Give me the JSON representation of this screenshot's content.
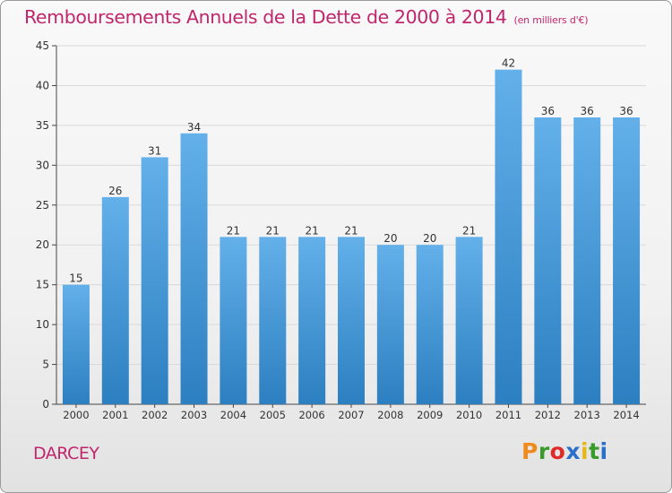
{
  "header": {
    "title": "Remboursements Annuels de la Dette de 2000 à 2014",
    "unit": "(en milliers d'€)"
  },
  "footer": {
    "city": "DARCEY",
    "brand": "Proxiti",
    "brand_colors": [
      "#f08a1c",
      "#3a9a2a",
      "#e02a2a",
      "#2a6fc9",
      "#e5b81a",
      "#3a9a2a",
      "#2a6fc9"
    ]
  },
  "colors": {
    "bar_top": "#63b0ea",
    "bar_bottom": "#2c7fc0",
    "title": "#c0266c",
    "axis": "#444444",
    "grid": "#d9d9d9"
  },
  "chart_data": {
    "type": "bar",
    "categories": [
      "2000",
      "2001",
      "2002",
      "2003",
      "2004",
      "2005",
      "2006",
      "2007",
      "2008",
      "2009",
      "2010",
      "2011",
      "2012",
      "2013",
      "2014"
    ],
    "values": [
      15,
      26,
      31,
      34,
      21,
      21,
      21,
      21,
      20,
      20,
      21,
      42,
      36,
      36,
      36
    ],
    "ylim": [
      0,
      45
    ],
    "yticks": [
      0,
      5,
      10,
      15,
      20,
      25,
      30,
      35,
      40,
      45
    ],
    "grid": true,
    "data_labels": true
  }
}
